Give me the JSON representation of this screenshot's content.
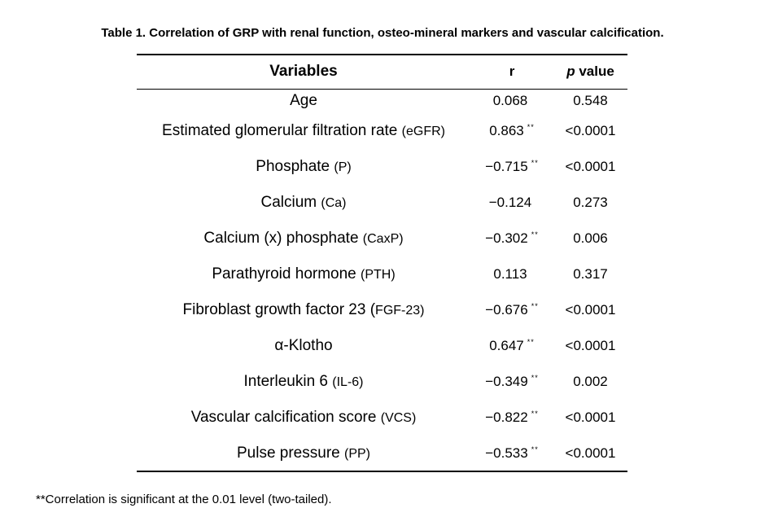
{
  "caption": "Table 1. Correlation of GRP with renal function, osteo-mineral markers and vascular calcification.",
  "table": {
    "headers": {
      "variables": "Variables",
      "r": "r",
      "p_italic": "p",
      "p_rest": " value"
    },
    "rows": [
      {
        "name": "Age",
        "abbr": "",
        "r": "0.068",
        "sig": "",
        "p": "0.548"
      },
      {
        "name": "Estimated glomerular filtration rate ",
        "abbr": "(eGFR)",
        "r": "0.863",
        "sig": "**",
        "p": "<0.0001"
      },
      {
        "name": "Phosphate ",
        "abbr": "(P)",
        "r": "−0.715",
        "sig": "**",
        "p": "<0.0001"
      },
      {
        "name": "Calcium ",
        "abbr": "(Ca)",
        "r": "−0.124",
        "sig": "",
        "p": "0.273"
      },
      {
        "name": "Calcium (x) phosphate ",
        "abbr": "(CaxP)",
        "r": "−0.302",
        "sig": "**",
        "p": "0.006"
      },
      {
        "name": "Parathyroid hormone ",
        "abbr": "(PTH)",
        "r": "0.113",
        "sig": "",
        "p": "0.317"
      },
      {
        "name": "Fibroblast growth factor 23 (",
        "abbr": "FGF-23)",
        "r": "−0.676",
        "sig": "**",
        "p": "<0.0001"
      },
      {
        "name": "α-Klotho",
        "abbr": "",
        "r": "0.647",
        "sig": "**",
        "p": "<0.0001"
      },
      {
        "name": "Interleukin 6 ",
        "abbr": "(IL-6)",
        "r": "−0.349",
        "sig": "**",
        "p": "0.002"
      },
      {
        "name": "Vascular calcification score ",
        "abbr": "(VCS)",
        "r": "−0.822",
        "sig": "**",
        "p": "<0.0001"
      },
      {
        "name": "Pulse pressure ",
        "abbr": "(PP)",
        "r": "−0.533",
        "sig": "**",
        "p": "<0.0001"
      }
    ]
  },
  "footnote": "**Correlation is significant at the 0.01 level (two-tailed)."
}
